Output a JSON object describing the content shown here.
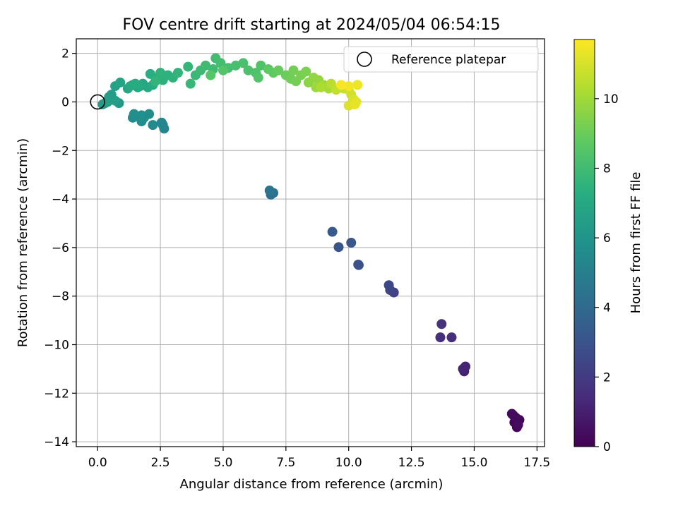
{
  "chart_data": {
    "type": "scatter",
    "title": "FOV centre drift starting at 2024/05/04 06:54:15",
    "xlabel": "Angular distance from reference (arcmin)",
    "ylabel": "Rotation from reference (arcmin)",
    "xlim": [
      -0.85,
      17.8
    ],
    "ylim": [
      -14.2,
      2.6
    ],
    "xticks": [
      "0.0",
      "2.5",
      "5.0",
      "7.5",
      "10.0",
      "12.5",
      "15.0",
      "17.5"
    ],
    "xtick_values": [
      0,
      2.5,
      5,
      7.5,
      10,
      12.5,
      15,
      17.5
    ],
    "yticks": [
      "2",
      "0",
      "−2",
      "−4",
      "−6",
      "−8",
      "−10",
      "−12",
      "−14"
    ],
    "ytick_values": [
      2,
      0,
      -2,
      -4,
      -6,
      -8,
      -10,
      -12,
      -14
    ],
    "grid": true,
    "legend": {
      "placement": "top-right",
      "label": "Reference platepar"
    },
    "reference_point": {
      "x": 0,
      "y": 0
    },
    "colorbar": {
      "label": "Hours from first FF file",
      "min": 0,
      "max": 11.7,
      "colormap": "viridis",
      "ticks": [
        "0",
        "2",
        "4",
        "6",
        "8",
        "10"
      ],
      "tick_values": [
        0,
        2,
        4,
        6,
        8,
        10
      ]
    },
    "points": [
      {
        "x": 16.7,
        "y": -13.4,
        "t": 0.05
      },
      {
        "x": 16.6,
        "y": -13.2,
        "t": 0.1
      },
      {
        "x": 16.8,
        "y": -13.1,
        "t": 0.15
      },
      {
        "x": 16.55,
        "y": -12.9,
        "t": 0.2
      },
      {
        "x": 16.65,
        "y": -13.0,
        "t": 0.25
      },
      {
        "x": 16.5,
        "y": -12.85,
        "t": 0.3
      },
      {
        "x": 16.75,
        "y": -13.3,
        "t": 0.35
      },
      {
        "x": 14.6,
        "y": -11.1,
        "t": 1.0
      },
      {
        "x": 14.65,
        "y": -10.9,
        "t": 1.1
      },
      {
        "x": 14.55,
        "y": -11.0,
        "t": 1.2
      },
      {
        "x": 14.1,
        "y": -9.7,
        "t": 1.5
      },
      {
        "x": 13.65,
        "y": -9.7,
        "t": 1.6
      },
      {
        "x": 13.7,
        "y": -9.15,
        "t": 1.7
      },
      {
        "x": 11.8,
        "y": -7.85,
        "t": 2.3
      },
      {
        "x": 11.65,
        "y": -7.75,
        "t": 2.4
      },
      {
        "x": 11.6,
        "y": -7.55,
        "t": 2.5
      },
      {
        "x": 10.4,
        "y": -6.72,
        "t": 2.8
      },
      {
        "x": 10.38,
        "y": -6.7,
        "t": 2.85
      },
      {
        "x": 9.6,
        "y": -5.98,
        "t": 3.1
      },
      {
        "x": 10.1,
        "y": -5.8,
        "t": 3.15
      },
      {
        "x": 9.35,
        "y": -5.35,
        "t": 3.25
      },
      {
        "x": 6.9,
        "y": -3.82,
        "t": 4.3
      },
      {
        "x": 7.0,
        "y": -3.75,
        "t": 4.4
      },
      {
        "x": 6.85,
        "y": -3.65,
        "t": 4.5
      },
      {
        "x": 2.65,
        "y": -1.1,
        "t": 5.3
      },
      {
        "x": 2.6,
        "y": -0.95,
        "t": 5.35
      },
      {
        "x": 2.55,
        "y": -0.85,
        "t": 5.4
      },
      {
        "x": 1.75,
        "y": -0.8,
        "t": 5.5
      },
      {
        "x": 2.2,
        "y": -0.95,
        "t": 5.55
      },
      {
        "x": 1.4,
        "y": -0.65,
        "t": 5.6
      },
      {
        "x": 1.85,
        "y": -0.65,
        "t": 5.65
      },
      {
        "x": 2.05,
        "y": -0.5,
        "t": 5.7
      },
      {
        "x": 1.45,
        "y": -0.5,
        "t": 5.75
      },
      {
        "x": 1.75,
        "y": -0.55,
        "t": 5.8
      },
      {
        "x": 0.85,
        "y": -0.05,
        "t": 6.2
      },
      {
        "x": 0.6,
        "y": 0.1,
        "t": 6.25
      },
      {
        "x": 0.3,
        "y": -0.05,
        "t": 6.3
      },
      {
        "x": 0.2,
        "y": -0.1,
        "t": 6.35
      },
      {
        "x": 0.45,
        "y": 0.2,
        "t": 6.4
      },
      {
        "x": 0.55,
        "y": 0.3,
        "t": 6.45
      },
      {
        "x": 0.4,
        "y": 0.0,
        "t": 6.5
      },
      {
        "x": 0.7,
        "y": 0.05,
        "t": 6.55
      },
      {
        "x": 0.7,
        "y": 0.65,
        "t": 6.7
      },
      {
        "x": 0.9,
        "y": 0.8,
        "t": 6.75
      },
      {
        "x": 1.2,
        "y": 0.55,
        "t": 6.8
      },
      {
        "x": 1.4,
        "y": 0.7,
        "t": 6.85
      },
      {
        "x": 1.6,
        "y": 0.6,
        "t": 6.9
      },
      {
        "x": 1.8,
        "y": 0.75,
        "t": 6.95
      },
      {
        "x": 2.0,
        "y": 0.6,
        "t": 7.0
      },
      {
        "x": 1.7,
        "y": 0.65,
        "t": 7.05
      },
      {
        "x": 1.3,
        "y": 0.65,
        "t": 7.1
      },
      {
        "x": 1.5,
        "y": 0.75,
        "t": 7.15
      },
      {
        "x": 2.2,
        "y": 0.7,
        "t": 7.2
      },
      {
        "x": 2.1,
        "y": 1.15,
        "t": 7.3
      },
      {
        "x": 2.4,
        "y": 1.0,
        "t": 7.35
      },
      {
        "x": 2.6,
        "y": 0.9,
        "t": 7.4
      },
      {
        "x": 2.8,
        "y": 1.1,
        "t": 7.45
      },
      {
        "x": 3.0,
        "y": 1.0,
        "t": 7.5
      },
      {
        "x": 2.5,
        "y": 1.2,
        "t": 7.55
      },
      {
        "x": 3.2,
        "y": 1.2,
        "t": 7.6
      },
      {
        "x": 2.3,
        "y": 0.85,
        "t": 7.65
      },
      {
        "x": 3.6,
        "y": 1.45,
        "t": 7.7
      },
      {
        "x": 3.7,
        "y": 0.75,
        "t": 7.75
      },
      {
        "x": 3.9,
        "y": 1.1,
        "t": 7.8
      },
      {
        "x": 4.1,
        "y": 1.3,
        "t": 7.9
      },
      {
        "x": 4.3,
        "y": 1.5,
        "t": 7.95
      },
      {
        "x": 4.6,
        "y": 1.35,
        "t": 8.0
      },
      {
        "x": 4.7,
        "y": 1.8,
        "t": 8.05
      },
      {
        "x": 4.9,
        "y": 1.6,
        "t": 8.1
      },
      {
        "x": 5.2,
        "y": 1.4,
        "t": 8.15
      },
      {
        "x": 5.5,
        "y": 1.5,
        "t": 8.2
      },
      {
        "x": 5.8,
        "y": 1.6,
        "t": 8.25
      },
      {
        "x": 6.0,
        "y": 1.3,
        "t": 8.3
      },
      {
        "x": 6.3,
        "y": 1.2,
        "t": 8.35
      },
      {
        "x": 6.5,
        "y": 1.5,
        "t": 8.4
      },
      {
        "x": 6.4,
        "y": 1.0,
        "t": 8.45
      },
      {
        "x": 5.0,
        "y": 1.3,
        "t": 8.5
      },
      {
        "x": 4.5,
        "y": 1.1,
        "t": 8.55
      },
      {
        "x": 6.8,
        "y": 1.35,
        "t": 8.7
      },
      {
        "x": 7.0,
        "y": 1.2,
        "t": 8.8
      },
      {
        "x": 7.2,
        "y": 1.3,
        "t": 8.9
      },
      {
        "x": 7.5,
        "y": 1.1,
        "t": 9.0
      },
      {
        "x": 7.7,
        "y": 0.95,
        "t": 9.1
      },
      {
        "x": 7.8,
        "y": 1.3,
        "t": 9.15
      },
      {
        "x": 7.9,
        "y": 0.85,
        "t": 9.2
      },
      {
        "x": 8.1,
        "y": 1.1,
        "t": 9.25
      },
      {
        "x": 8.3,
        "y": 1.25,
        "t": 9.3
      },
      {
        "x": 8.4,
        "y": 0.8,
        "t": 9.6
      },
      {
        "x": 8.6,
        "y": 1.0,
        "t": 9.7
      },
      {
        "x": 8.8,
        "y": 0.9,
        "t": 9.8
      },
      {
        "x": 8.7,
        "y": 0.6,
        "t": 9.9
      },
      {
        "x": 9.0,
        "y": 0.7,
        "t": 10.0
      },
      {
        "x": 9.2,
        "y": 0.55,
        "t": 10.1
      },
      {
        "x": 8.9,
        "y": 0.6,
        "t": 10.2
      },
      {
        "x": 9.3,
        "y": 0.75,
        "t": 10.5
      },
      {
        "x": 9.5,
        "y": 0.5,
        "t": 10.6
      },
      {
        "x": 9.8,
        "y": 0.55,
        "t": 10.7
      },
      {
        "x": 10.0,
        "y": 0.5,
        "t": 10.8
      },
      {
        "x": 10.1,
        "y": 0.3,
        "t": 10.9
      },
      {
        "x": 10.2,
        "y": 0.1,
        "t": 11.0
      },
      {
        "x": 10.0,
        "y": -0.15,
        "t": 11.1
      },
      {
        "x": 10.3,
        "y": 0.0,
        "t": 11.2
      },
      {
        "x": 10.25,
        "y": -0.1,
        "t": 11.3
      },
      {
        "x": 10.35,
        "y": 0.7,
        "t": 11.4
      },
      {
        "x": 10.0,
        "y": 0.65,
        "t": 11.5
      },
      {
        "x": 9.7,
        "y": 0.7,
        "t": 11.6
      }
    ]
  }
}
